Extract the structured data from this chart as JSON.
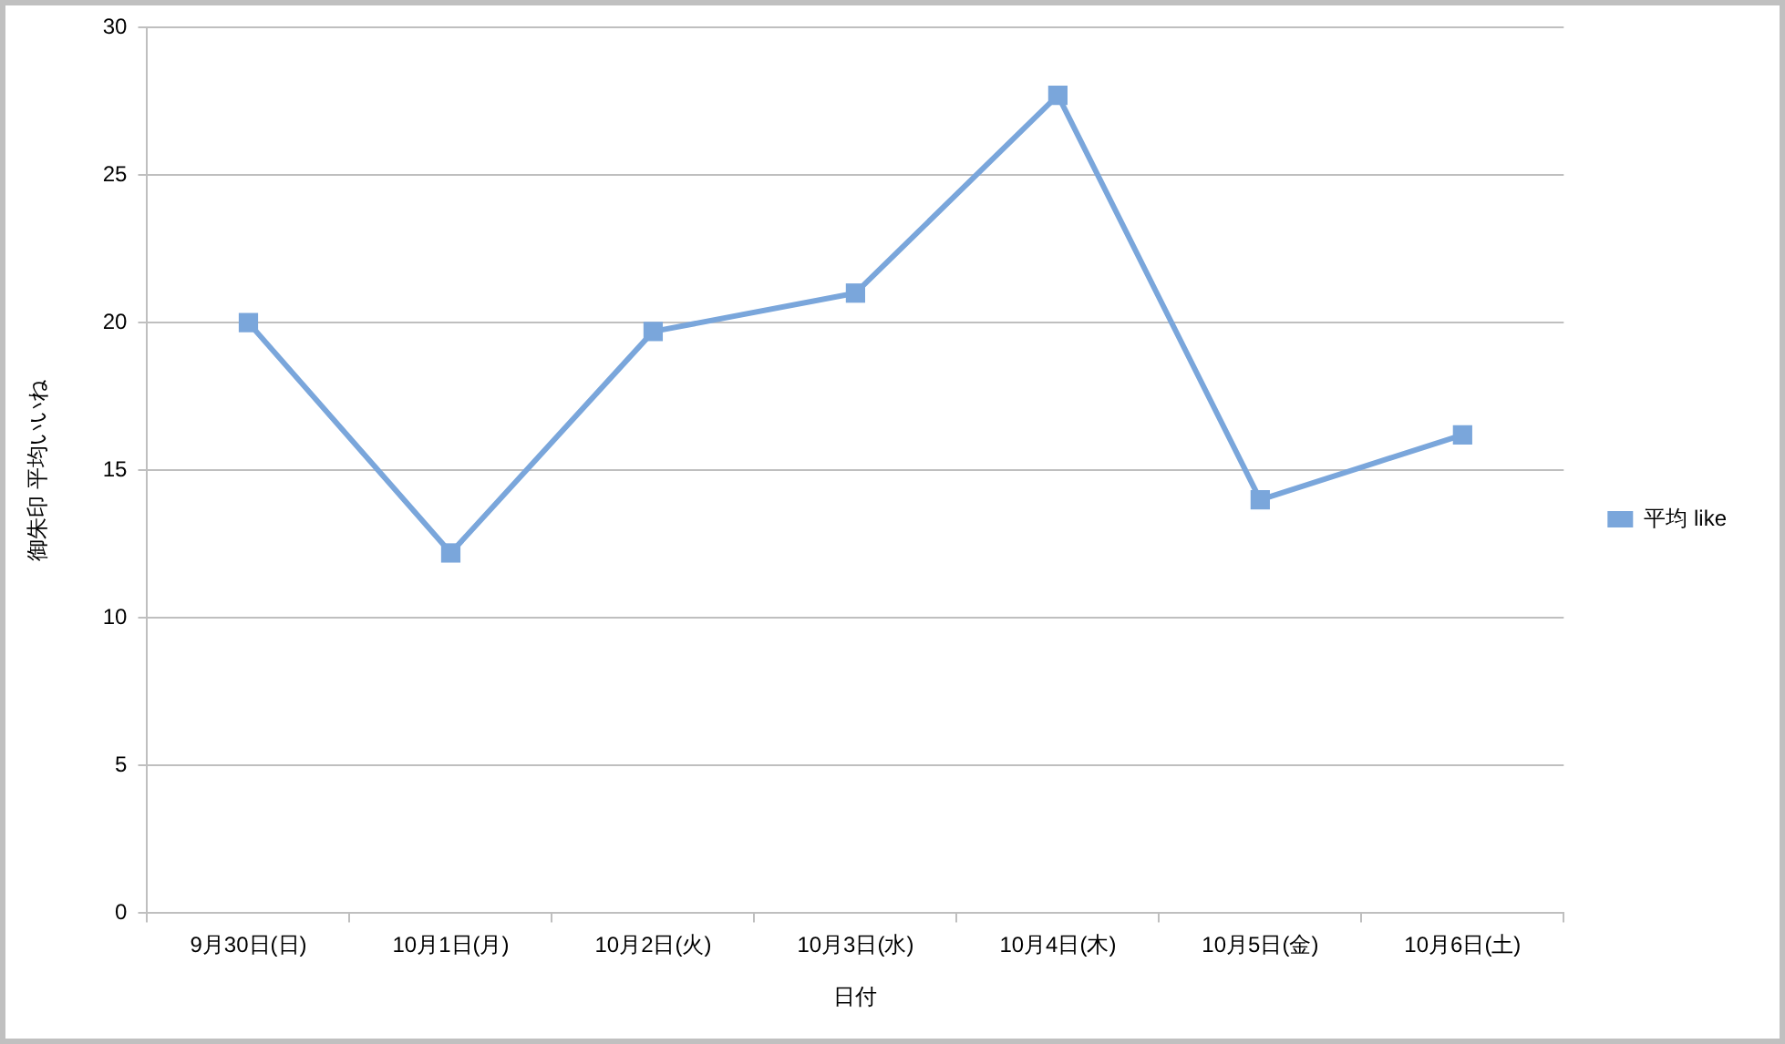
{
  "chart_data": {
    "type": "line",
    "xlabel": "日付",
    "ylabel": "御朱印 平均いいね",
    "categories": [
      "9月30日(日)",
      "10月1日(月)",
      "10月2日(火)",
      "10月3日(水)",
      "10月4日(木)",
      "10月5日(金)",
      "10月6日(土)"
    ],
    "series": [
      {
        "name": "平均 like",
        "color": "#7aa6db",
        "values": [
          20,
          12.2,
          19.7,
          21,
          27.7,
          14,
          16.2
        ]
      }
    ],
    "ylim": [
      0,
      30
    ],
    "yticks": [
      0,
      5,
      10,
      15,
      20,
      25,
      30
    ],
    "grid": "y",
    "legend": "right",
    "marker": "square",
    "line_style": "solid"
  }
}
